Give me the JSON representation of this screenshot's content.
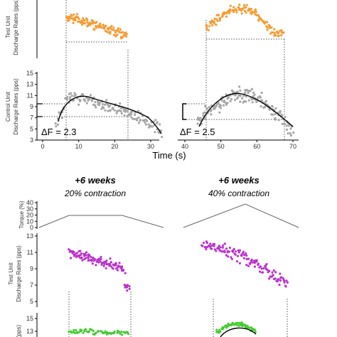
{
  "colors": {
    "orange": "#f59c35",
    "gray": "#a6a6a6",
    "purple": "#bb33cc",
    "green": "#44cc33",
    "fit": "#000000",
    "torque": "#666666"
  },
  "top": {
    "x_label": "Time (s)",
    "x_ticks_left": [
      "0",
      "10",
      "20",
      "30"
    ],
    "x_ticks_right": [
      "40",
      "50",
      "60",
      "70"
    ],
    "test_ylabel_1": "Test Unit",
    "test_ylabel_2": "Discharge Rates (pps)",
    "control_ylabel_1": "Control Unit",
    "control_ylabel_2": "Discharge Rates (pps)",
    "y_ticks": [
      "3",
      "5",
      "7",
      "9",
      "11",
      "13",
      "15"
    ],
    "delta_left": "ΔF = 2.3",
    "delta_right": "ΔF = 2.5"
  },
  "bottom": {
    "left_heading": "+6 weeks",
    "left_sub": "20% contraction",
    "right_heading": "+6 weeks",
    "right_sub": "40% contraction",
    "torque_ylabel": "Torque (%)",
    "torque_ticks": [
      "0",
      "10",
      "20",
      "30",
      "40"
    ],
    "test_ylabel_1": "Test Unit",
    "test_ylabel_2": "Discharge Rates (pps)",
    "test_ticks": [
      "5",
      "7",
      "9",
      "11",
      "13"
    ],
    "control_ylabel": "(pps)",
    "control_ticks": [
      "13",
      "15"
    ]
  },
  "chart_data": [
    {
      "id": "top-left-test",
      "type": "scatter",
      "series": [
        {
          "color": "orange",
          "x": [
            10,
            28
          ],
          "y_start": 9.8,
          "y_end": 6.7
        }
      ],
      "ylim": [
        3,
        15
      ]
    },
    {
      "id": "top-left-control",
      "type": "scatter",
      "xlim": [
        0,
        35
      ],
      "ylim": [
        3,
        15
      ],
      "series": [
        {
          "color": "gray",
          "x": [
            7,
            33
          ],
          "fit_peak_x": 12,
          "fit_peak_y": 10.2,
          "fit_end_y": 4
        }
      ],
      "delta_f": 2.3
    },
    {
      "id": "top-right-test",
      "type": "scatter",
      "series": [
        {
          "color": "orange",
          "x": [
            46,
            66
          ],
          "y_start": 7,
          "y_peak": 9.5,
          "y_end": 5
        }
      ],
      "ylim": [
        3,
        15
      ]
    },
    {
      "id": "top-right-control",
      "type": "scatter",
      "xlim": [
        38,
        72
      ],
      "ylim": [
        3,
        15
      ],
      "series": [
        {
          "color": "gray",
          "x": [
            43,
            69
          ],
          "fit_peak_x": 55,
          "fit_peak_y": 11,
          "fit_end_y": 5
        }
      ],
      "delta_f": 2.5
    },
    {
      "id": "bottom-torque",
      "type": "line",
      "series": [
        {
          "name": "20% contraction",
          "x": [
            0,
            0.3,
            0.7,
            1
          ],
          "y": [
            0,
            20,
            20,
            0
          ]
        },
        {
          "name": "40% contraction",
          "x": [
            0,
            0.5,
            1
          ],
          "y": [
            0,
            40,
            0
          ]
        }
      ]
    },
    {
      "id": "bottom-test",
      "type": "scatter",
      "series": [
        {
          "color": "purple",
          "panel": "left",
          "y_start": 10.5,
          "y_end": 7.5
        },
        {
          "color": "purple",
          "panel": "right",
          "y_start": 11,
          "y_peak": 12,
          "y_end": 5.5
        }
      ],
      "ylim": [
        3,
        15
      ]
    },
    {
      "id": "bottom-control",
      "type": "scatter",
      "series": [
        {
          "color": "green",
          "panel": "left",
          "y_mean": 12
        },
        {
          "color": "green",
          "panel": "right",
          "y_peak": 13
        }
      ]
    }
  ]
}
